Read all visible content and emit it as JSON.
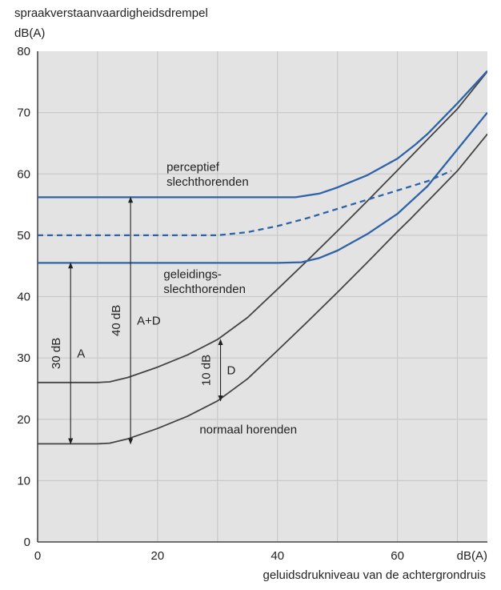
{
  "chart_data": {
    "type": "line",
    "ylabel_line1": "spraakverstaanvaardigheidsdrempel",
    "ylabel_line2": "dB(A)",
    "xlabel": "geluidsdrukniveau van de achtergrondruis",
    "x_unit_tick": "dB(A)",
    "xlim": [
      0,
      75
    ],
    "ylim": [
      0,
      80
    ],
    "xticks": [
      0,
      20,
      40,
      60
    ],
    "yticks": [
      0,
      10,
      20,
      30,
      40,
      50,
      60,
      70,
      80
    ],
    "grid": true,
    "colors": {
      "blue": "#2f63a8",
      "gray": "#444444",
      "grid": "#c9c9c9",
      "background": "#e3e3e3"
    },
    "series": [
      {
        "style": "gray",
        "x": [
          0,
          10,
          12,
          15,
          20,
          25,
          30,
          35,
          40,
          45,
          50,
          55,
          60,
          62,
          65,
          70,
          75
        ],
        "y": [
          16,
          16,
          16.1,
          16.8,
          18.5,
          20.5,
          23,
          26.6,
          31.2,
          35.9,
          40.7,
          45.6,
          50.6,
          52.5,
          55.5,
          60.5,
          66.5
        ]
      },
      {
        "style": "gray",
        "x": [
          0,
          10,
          12,
          15,
          20,
          25,
          30,
          35,
          40,
          45,
          50,
          55,
          60,
          65,
          70,
          75
        ],
        "y": [
          26,
          26,
          26.1,
          26.8,
          28.5,
          30.5,
          33,
          36.6,
          41.2,
          45.9,
          50.7,
          55.6,
          60.6,
          65.6,
          70.6,
          76.7
        ]
      },
      {
        "style": "blue",
        "x": [
          0,
          30,
          40,
          44,
          47,
          50,
          55,
          60,
          65,
          70,
          75
        ],
        "y": [
          45.5,
          45.5,
          45.5,
          45.6,
          46.3,
          47.5,
          50.2,
          53.5,
          58,
          64,
          70
        ]
      },
      {
        "style": "blue",
        "x": [
          0,
          30,
          40,
          43,
          47,
          50,
          55,
          60,
          63,
          65,
          70,
          75
        ],
        "y": [
          56.2,
          56.2,
          56.2,
          56.2,
          56.8,
          57.8,
          59.8,
          62.5,
          64.8,
          66.5,
          71.5,
          76.8
        ]
      },
      {
        "style": "blue-dashed",
        "x": [
          0,
          15,
          20,
          25,
          30,
          35,
          40,
          45,
          50,
          55,
          60,
          65,
          69
        ],
        "y": [
          50,
          50,
          50,
          50,
          50,
          50.5,
          51.5,
          52.8,
          54.3,
          55.8,
          57.3,
          58.8,
          60.5
        ]
      }
    ],
    "arrows": [
      {
        "x": 5.5,
        "y_from": 16,
        "y_to": 45.5,
        "label": "30 dB",
        "letter": "A"
      },
      {
        "x": 15.5,
        "y_from": 16,
        "y_to": 56.2,
        "label": "40 dB",
        "letter": "A+D"
      },
      {
        "x": 30.5,
        "y_from": 23,
        "y_to": 33,
        "label": "10 dB",
        "letter": "D"
      }
    ],
    "annotations": [
      {
        "text": "perceptief",
        "x": 21.5,
        "y": 60.5
      },
      {
        "text": "slechthorenden",
        "x": 21.5,
        "y": 58.1
      },
      {
        "text": "geleidings-",
        "x": 21,
        "y": 43
      },
      {
        "text": "slechthorenden",
        "x": 21,
        "y": 40.6
      },
      {
        "text": "normaal horenden",
        "x": 27,
        "y": 17.7
      }
    ]
  }
}
